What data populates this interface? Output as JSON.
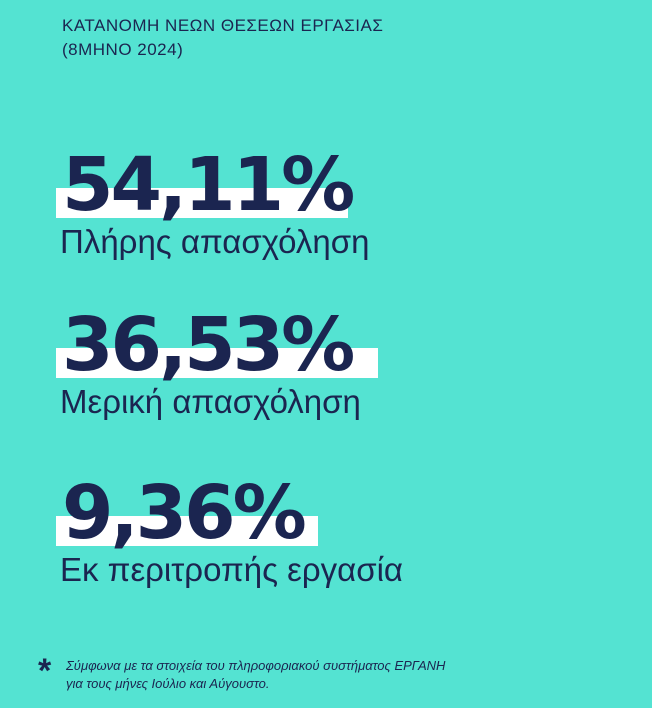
{
  "title": {
    "line1": "ΚΑΤΑΝΟΜΗ ΝΕΩΝ ΘΕΣΕΩΝ ΕΡΓΑΣΙΑΣ",
    "line2": "(8ΜΗΝΟ 2024)"
  },
  "stats": [
    {
      "value": "54,11%",
      "label": "Πλήρης απασχόληση"
    },
    {
      "value": "36,53%",
      "label": "Μερική απασχόληση"
    },
    {
      "value": "9,36%",
      "label": "Εκ περιτροπής εργασία"
    }
  ],
  "footnote": {
    "marker": "*",
    "line1": "Σύμφωνα με τα στοιχεία του πληροφοριακού συστήματος ΕΡΓΑΝΗ",
    "line2": "για τους μήνες Ιούλιο και Αύγουστο."
  },
  "colors": {
    "background": "#54e3d2",
    "text": "#1b2550",
    "highlight": "#ffffff"
  }
}
